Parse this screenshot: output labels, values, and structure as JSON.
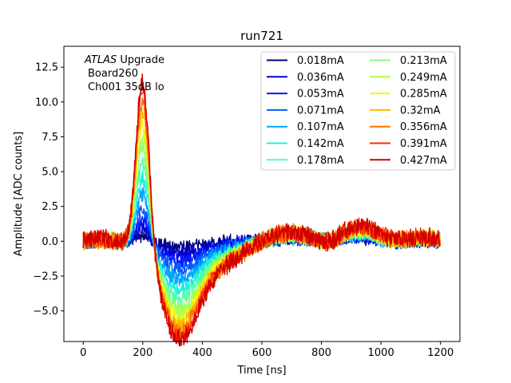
{
  "chart_data": {
    "type": "line",
    "title": "run721",
    "xlabel": "Time [ns]",
    "ylabel": "Amplitude [ADC counts]",
    "xlim": [
      -65,
      1265
    ],
    "ylim": [
      -7.2,
      14.0
    ],
    "xticks": [
      0,
      200,
      400,
      600,
      800,
      1000,
      1200
    ],
    "xtick_labels": [
      "0",
      "200",
      "400",
      "600",
      "800",
      "1000",
      "1200"
    ],
    "yticks": [
      -5.0,
      -2.5,
      0.0,
      2.5,
      5.0,
      7.5,
      10.0,
      12.5
    ],
    "ytick_labels": [
      "−5.0",
      "−2.5",
      "0.0",
      "2.5",
      "5.0",
      "7.5",
      "10.0",
      "12.5"
    ],
    "grid": false,
    "legend_position": "top-right",
    "legend_columns": 2,
    "annotation": {
      "italic": "ATLAS",
      "rest": " Upgrade",
      "line2": "Board260",
      "line3": "Ch001 35dB lo"
    },
    "series": [
      {
        "name": "0.018mA",
        "color": "#00007f",
        "peak": 0.5,
        "undershoot": -0.3
      },
      {
        "name": "0.036mA",
        "color": "#0000d0",
        "peak": 1.2,
        "undershoot": -0.8
      },
      {
        "name": "0.053mA",
        "color": "#0018ff",
        "peak": 1.9,
        "undershoot": -1.3
      },
      {
        "name": "0.071mA",
        "color": "#005cff",
        "peak": 2.6,
        "undershoot": -1.8
      },
      {
        "name": "0.107mA",
        "color": "#00a4ff",
        "peak": 3.8,
        "undershoot": -2.4
      },
      {
        "name": "0.142mA",
        "color": "#1fefe0",
        "peak": 5.0,
        "undershoot": -3.0
      },
      {
        "name": "0.178mA",
        "color": "#4fffad",
        "peak": 6.2,
        "undershoot": -3.6
      },
      {
        "name": "0.213mA",
        "color": "#80ff7a",
        "peak": 7.2,
        "undershoot": -4.1
      },
      {
        "name": "0.249mA",
        "color": "#b0ff46",
        "peak": 8.2,
        "undershoot": -4.5
      },
      {
        "name": "0.285mA",
        "color": "#f1fc06",
        "peak": 9.2,
        "undershoot": -4.9
      },
      {
        "name": "0.32mA",
        "color": "#ffb900",
        "peak": 10.2,
        "undershoot": -5.3
      },
      {
        "name": "0.356mA",
        "color": "#ff7300",
        "peak": 11.0,
        "undershoot": -5.6
      },
      {
        "name": "0.391mA",
        "color": "#ff2d00",
        "peak": 11.8,
        "undershoot": -5.9
      },
      {
        "name": "0.427mA",
        "color": "#d00000",
        "peak": 12.5,
        "undershoot": -6.1
      }
    ]
  }
}
